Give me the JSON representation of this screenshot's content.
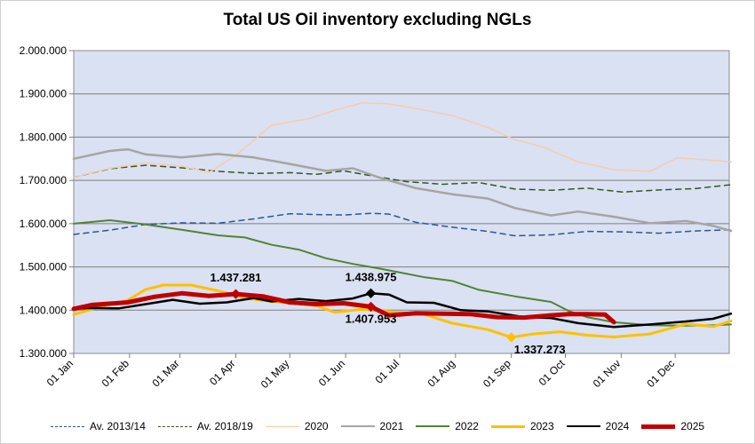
{
  "chart_data": {
    "type": "line",
    "title": "Total US Oil inventory excluding NGLs",
    "xlabel": "",
    "ylabel": "",
    "ylim": [
      1300000,
      2000000
    ],
    "y_ticks": [
      {
        "value": 1300000,
        "label": "1.300.000"
      },
      {
        "value": 1400000,
        "label": "1.400.000"
      },
      {
        "value": 1500000,
        "label": "1.500.000"
      },
      {
        "value": 1600000,
        "label": "1.600.000"
      },
      {
        "value": 1700000,
        "label": "1.700.000"
      },
      {
        "value": 1800000,
        "label": "1.800.000"
      },
      {
        "value": 1900000,
        "label": "1.900.000"
      },
      {
        "value": 2000000,
        "label": "2.000.000"
      }
    ],
    "x_unit": "day of year",
    "xlim": [
      1,
      365
    ],
    "x_ticks": [
      {
        "value": 1,
        "label": "01 Jan"
      },
      {
        "value": 32,
        "label": "01 Feb"
      },
      {
        "value": 60,
        "label": "01 Mar"
      },
      {
        "value": 91,
        "label": "01 Apr"
      },
      {
        "value": 121,
        "label": "01 May"
      },
      {
        "value": 152,
        "label": "01 Jun"
      },
      {
        "value": 182,
        "label": "01 Jul"
      },
      {
        "value": 213,
        "label": "01 Aug"
      },
      {
        "value": 244,
        "label": "01 Sep"
      },
      {
        "value": 274,
        "label": "01 Oct"
      },
      {
        "value": 305,
        "label": "01 Nov"
      },
      {
        "value": 335,
        "label": "01 Dec"
      }
    ],
    "series": [
      {
        "name": "Av. 2013/14",
        "color": "#2f5597",
        "style": "dash",
        "width": 1.5,
        "x": [
          1,
          21,
          41,
          61,
          81,
          101,
          121,
          136,
          151,
          166,
          176,
          191,
          211,
          231,
          246,
          266,
          286,
          306,
          326,
          346,
          366
        ],
        "values": [
          1575000,
          1585000,
          1598000,
          1602000,
          1601000,
          1611000,
          1623000,
          1621000,
          1620000,
          1624000,
          1622000,
          1603000,
          1592000,
          1582000,
          1572000,
          1574000,
          1582000,
          1581000,
          1578000,
          1583000,
          1586000
        ]
      },
      {
        "name": "Av. 2018/19",
        "color": "#375623",
        "style": "dash",
        "width": 1.5,
        "x": [
          1,
          21,
          41,
          61,
          81,
          101,
          121,
          136,
          151,
          166,
          186,
          206,
          226,
          246,
          266,
          286,
          306,
          326,
          346,
          366
        ],
        "values": [
          1707000,
          1727000,
          1735000,
          1729000,
          1721000,
          1716000,
          1718000,
          1714000,
          1722000,
          1711000,
          1697000,
          1691000,
          1695000,
          1680000,
          1677000,
          1682000,
          1673000,
          1678000,
          1681000,
          1690000
        ]
      },
      {
        "name": "2020",
        "color": "#f8cbad",
        "style": "solid",
        "width": 1.5,
        "x": [
          1,
          21,
          41,
          61,
          76,
          91,
          111,
          131,
          146,
          161,
          176,
          191,
          211,
          231,
          246,
          261,
          281,
          301,
          321,
          336,
          351,
          366
        ],
        "values": [
          1707000,
          1728000,
          1740000,
          1733000,
          1718000,
          1758000,
          1828000,
          1842000,
          1862000,
          1879000,
          1877000,
          1866000,
          1850000,
          1822000,
          1794000,
          1778000,
          1743000,
          1725000,
          1721000,
          1752000,
          1748000,
          1743000
        ]
      },
      {
        "name": "2021",
        "color": "#a5a5a5",
        "style": "solid",
        "width": 2.5,
        "x": [
          1,
          21,
          31,
          41,
          61,
          81,
          101,
          121,
          141,
          156,
          171,
          191,
          211,
          231,
          246,
          266,
          281,
          301,
          321,
          341,
          356,
          366
        ],
        "values": [
          1750000,
          1768000,
          1772000,
          1760000,
          1753000,
          1761000,
          1753000,
          1738000,
          1722000,
          1728000,
          1706000,
          1682000,
          1668000,
          1658000,
          1636000,
          1619000,
          1628000,
          1616000,
          1601000,
          1606000,
          1595000,
          1583000
        ]
      },
      {
        "name": "2022",
        "color": "#548235",
        "style": "solid",
        "width": 2,
        "x": [
          1,
          21,
          41,
          61,
          81,
          96,
          111,
          126,
          141,
          156,
          171,
          181,
          196,
          211,
          226,
          246,
          266,
          276,
          286,
          301,
          321,
          341,
          356,
          366
        ],
        "values": [
          1600000,
          1608000,
          1598000,
          1586000,
          1573000,
          1568000,
          1551000,
          1540000,
          1520000,
          1507000,
          1496000,
          1488000,
          1476000,
          1468000,
          1447000,
          1432000,
          1419000,
          1398000,
          1384000,
          1372000,
          1365000,
          1364000,
          1365000,
          1367000
        ]
      },
      {
        "name": "2023",
        "color": "#ffc000",
        "style": "solid",
        "width": 3,
        "x": [
          1,
          16,
          31,
          41,
          51,
          66,
          81,
          96,
          111,
          126,
          136,
          146,
          161,
          181,
          196,
          211,
          231,
          244,
          256,
          271,
          286,
          301,
          321,
          341,
          356,
          366
        ],
        "values": [
          1390000,
          1408000,
          1423000,
          1448000,
          1458000,
          1458000,
          1445000,
          1428000,
          1420000,
          1415000,
          1410000,
          1395000,
          1402000,
          1395000,
          1390000,
          1370000,
          1355000,
          1337273,
          1345000,
          1350000,
          1342000,
          1338000,
          1345000,
          1368000,
          1362000,
          1375000
        ]
      },
      {
        "name": "2024",
        "color": "#000000",
        "style": "solid",
        "width": 2.5,
        "x": [
          1,
          11,
          26,
          41,
          56,
          71,
          86,
          101,
          111,
          126,
          141,
          156,
          166,
          176,
          186,
          201,
          216,
          231,
          251,
          266,
          281,
          301,
          321,
          341,
          356,
          366
        ],
        "values": [
          1403000,
          1405000,
          1404000,
          1414000,
          1424000,
          1415000,
          1418000,
          1428000,
          1420000,
          1426000,
          1421000,
          1427000,
          1438975,
          1436000,
          1418000,
          1417000,
          1400000,
          1397000,
          1384000,
          1382000,
          1370000,
          1361000,
          1367000,
          1374000,
          1380000,
          1392000
        ]
      },
      {
        "name": "2025",
        "color": "#c00000",
        "style": "solid",
        "width": 5,
        "x": [
          1,
          11,
          31,
          46,
          61,
          76,
          91,
          106,
          121,
          136,
          151,
          166,
          176,
          191,
          206,
          221,
          236,
          251,
          266,
          276,
          286,
          296,
          301
        ],
        "values": [
          1403000,
          1412000,
          1418000,
          1431000,
          1439000,
          1433000,
          1437281,
          1432000,
          1418000,
          1414000,
          1416000,
          1407953,
          1388000,
          1393000,
          1392000,
          1391000,
          1384000,
          1383000,
          1388000,
          1391000,
          1391000,
          1390000,
          1372000
        ]
      }
    ],
    "annotations": [
      {
        "label": "1.437.281",
        "x": 91,
        "y": 1437281,
        "series": "2025"
      },
      {
        "label": "1.438.975",
        "x": 166,
        "y": 1438975,
        "series": "2024"
      },
      {
        "label": "1.407.953",
        "x": 166,
        "y": 1407953,
        "series": "2025"
      },
      {
        "label": "1.337.273",
        "x": 244,
        "y": 1337273,
        "series": "2023"
      }
    ],
    "grid": true,
    "legend_position": "bottom"
  }
}
